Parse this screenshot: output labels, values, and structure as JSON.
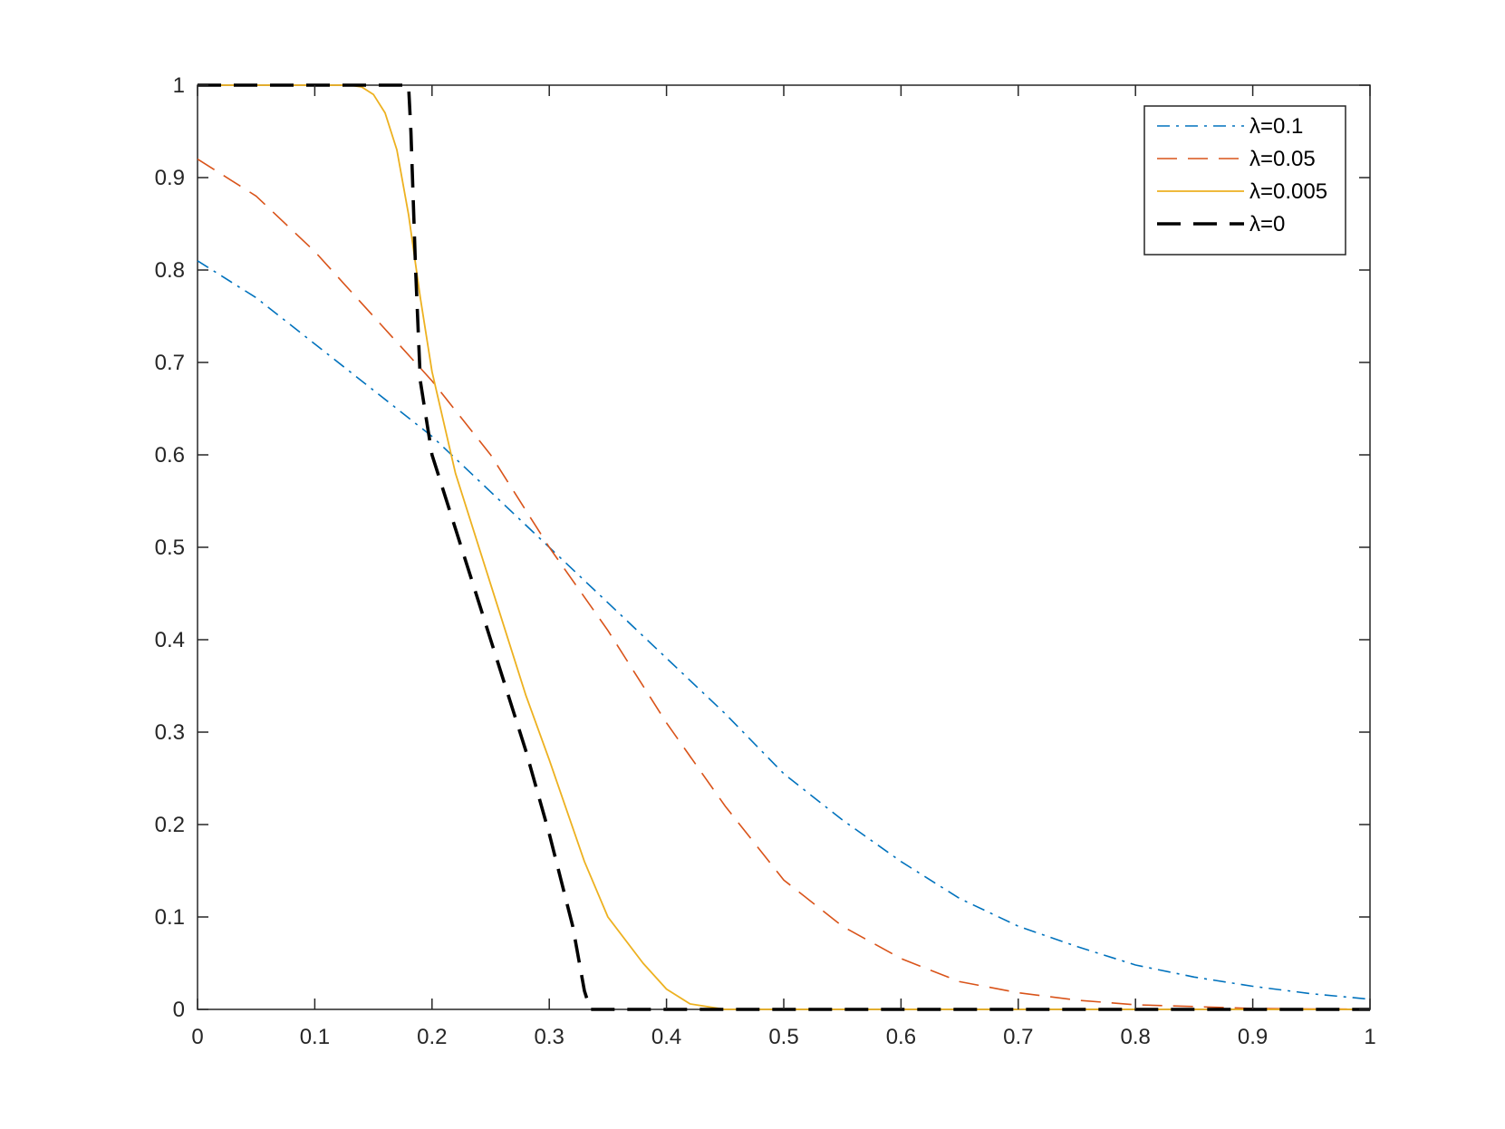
{
  "chart_data": {
    "type": "line",
    "title": "",
    "xlabel": "",
    "ylabel": "",
    "xlim": [
      0,
      1
    ],
    "ylim": [
      0,
      1
    ],
    "xticks": [
      "0",
      "0.1",
      "0.2",
      "0.3",
      "0.4",
      "0.5",
      "0.6",
      "0.7",
      "0.8",
      "0.9",
      "1"
    ],
    "yticks": [
      "0",
      "0.1",
      "0.2",
      "0.3",
      "0.4",
      "0.5",
      "0.6",
      "0.7",
      "0.8",
      "0.9",
      "1"
    ],
    "grid": false,
    "legend_position": "top-right",
    "series": [
      {
        "name": "λ=0.1",
        "color": "#0072BD",
        "style": "dash-dot",
        "x": [
          0,
          0.05,
          0.1,
          0.15,
          0.2,
          0.25,
          0.3,
          0.35,
          0.4,
          0.45,
          0.5,
          0.55,
          0.6,
          0.65,
          0.7,
          0.75,
          0.8,
          0.85,
          0.9,
          0.95,
          1.0
        ],
        "y": [
          0.81,
          0.77,
          0.72,
          0.67,
          0.62,
          0.56,
          0.5,
          0.44,
          0.38,
          0.32,
          0.255,
          0.205,
          0.16,
          0.12,
          0.09,
          0.068,
          0.048,
          0.035,
          0.025,
          0.017,
          0.011
        ]
      },
      {
        "name": "λ=0.05",
        "color": "#D95319",
        "style": "dashed",
        "x": [
          0,
          0.05,
          0.1,
          0.15,
          0.2,
          0.25,
          0.3,
          0.35,
          0.4,
          0.45,
          0.5,
          0.55,
          0.6,
          0.65,
          0.7,
          0.75,
          0.8,
          0.85,
          0.9,
          0.95,
          1.0
        ],
        "y": [
          0.92,
          0.88,
          0.82,
          0.75,
          0.68,
          0.6,
          0.5,
          0.41,
          0.31,
          0.22,
          0.14,
          0.09,
          0.055,
          0.03,
          0.018,
          0.01,
          0.005,
          0.003,
          0.001,
          0.0005,
          0.0002
        ]
      },
      {
        "name": "λ=0.005",
        "color": "#EDB120",
        "style": "solid",
        "x": [
          0,
          0.1,
          0.13,
          0.14,
          0.15,
          0.16,
          0.17,
          0.18,
          0.19,
          0.2,
          0.22,
          0.25,
          0.28,
          0.3,
          0.33,
          0.35,
          0.38,
          0.4,
          0.42,
          0.45,
          0.5,
          0.6,
          1.0
        ],
        "y": [
          1,
          1,
          1,
          0.998,
          0.99,
          0.97,
          0.93,
          0.86,
          0.77,
          0.69,
          0.58,
          0.46,
          0.34,
          0.27,
          0.16,
          0.1,
          0.05,
          0.022,
          0.006,
          0.0,
          0.0,
          0.0,
          0.0
        ]
      },
      {
        "name": "λ=0",
        "color": "#000000",
        "style": "dashed-thick",
        "x": [
          0,
          0.18,
          0.182,
          0.186,
          0.19,
          0.195,
          0.2,
          0.22,
          0.25,
          0.28,
          0.3,
          0.32,
          0.33,
          0.335,
          0.35,
          1.0
        ],
        "y": [
          1,
          1,
          0.95,
          0.8,
          0.68,
          0.64,
          0.6,
          0.52,
          0.4,
          0.28,
          0.19,
          0.09,
          0.02,
          0.0,
          0.0,
          0.0
        ]
      }
    ]
  }
}
